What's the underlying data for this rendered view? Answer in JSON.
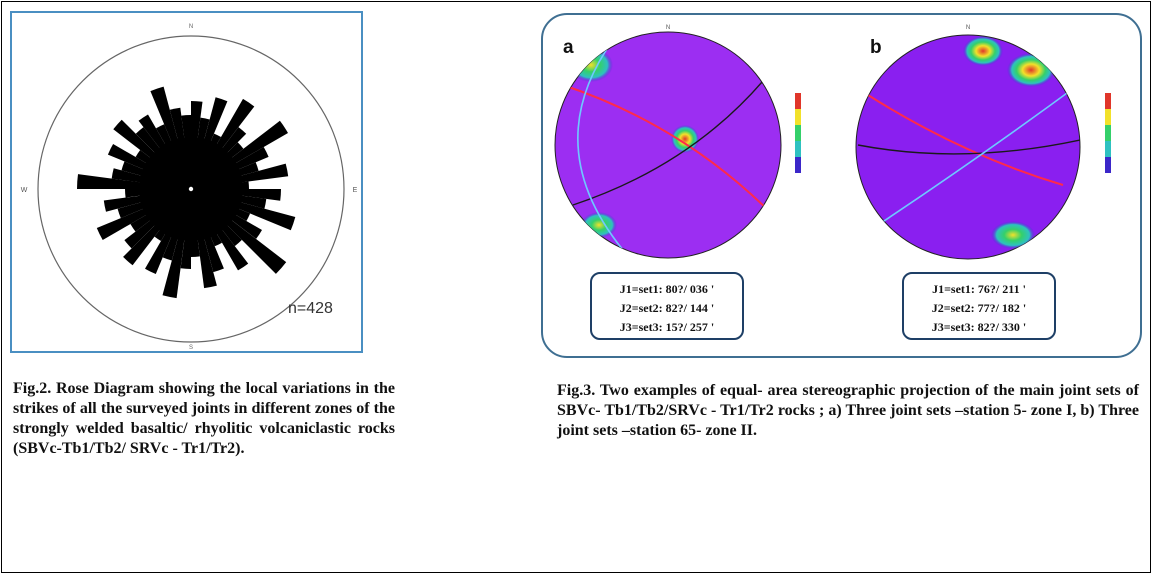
{
  "rose_diagram": {
    "compass": {
      "north": "N",
      "south": "S",
      "east": "E",
      "west": "W"
    },
    "count_label": "n=428"
  },
  "stereonets": [
    {
      "label": "a",
      "compass_north": "N",
      "joint_sets": [
        "J1=set1: 80?/ 036 '",
        "J2=set2: 82?/ 144 '",
        "J3=set3: 15?/ 257 '"
      ],
      "fill_color": "#9c2ef2",
      "concentration_colors": [
        "#3b27c9",
        "#2ec1c1",
        "#34d06a",
        "#f2e12a",
        "#e0362a"
      ]
    },
    {
      "label": "b",
      "compass_north": "N",
      "joint_sets": [
        "J1=set1: 76?/ 211 '",
        "J2=set2: 77?/ 182 '",
        "J3=set3: 82?/ 330 '"
      ],
      "fill_color": "#8a1ff0",
      "concentration_colors": [
        "#3b27c9",
        "#2ec1c1",
        "#34d06a",
        "#f2e12a",
        "#e0362a"
      ]
    }
  ],
  "captions": {
    "fig2": "Fig.2. Rose Diagram showing the local variations in the strikes of all the surveyed joints in different zones of the strongly welded basaltic/ rhyolitic volcaniclastic rocks (SBVc-Tb1/Tb2/ SRVc - Tr1/Tr2).",
    "fig3": "Fig.3. Two examples of equal- area stereographic projection of the main joint sets of SBVc- Tb1/Tb2/SRVc - Tr1/Tr2 rocks ; a) Three joint sets –station 5- zone I, b) Three joint sets –station 65- zone II."
  }
}
